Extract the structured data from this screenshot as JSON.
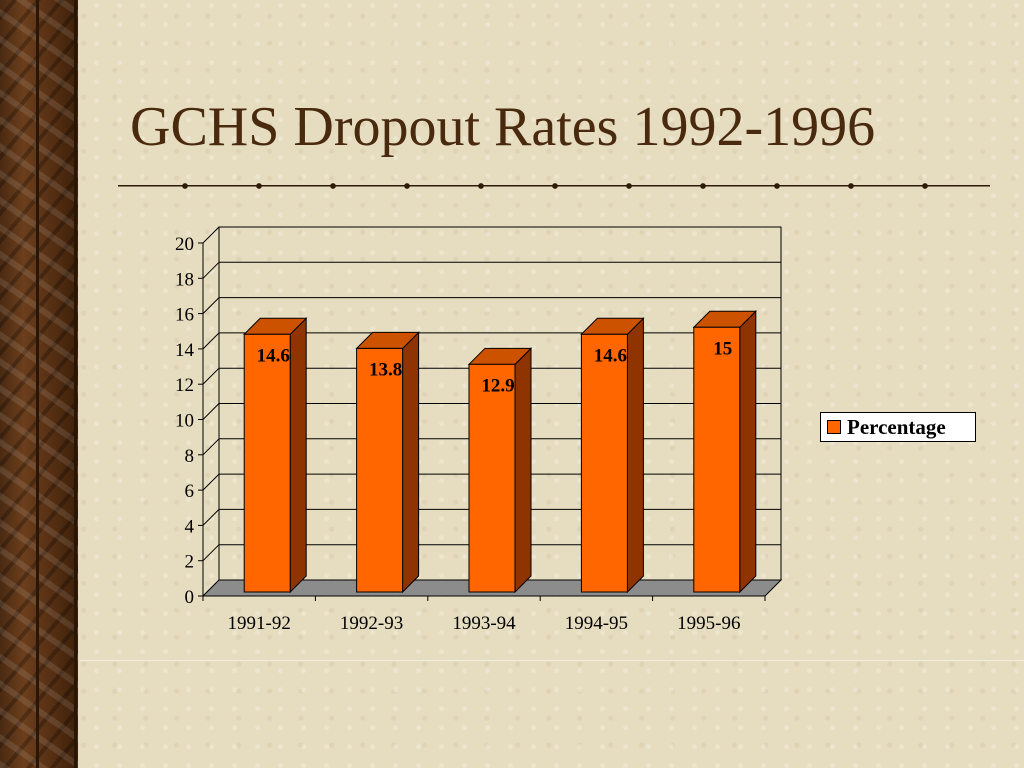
{
  "slide": {
    "title": "GCHS Dropout Rates 1992-1996"
  },
  "chart_data": {
    "type": "bar",
    "categories": [
      "1991-92",
      "1992-93",
      "1993-94",
      "1994-95",
      "1995-96"
    ],
    "series": [
      {
        "name": "Percentage",
        "values": [
          14.6,
          13.8,
          12.9,
          14.6,
          15
        ],
        "color": "#ff6600"
      }
    ],
    "ylim": [
      0,
      20
    ],
    "yticks": [
      0,
      2,
      4,
      6,
      8,
      10,
      12,
      14,
      16,
      18,
      20
    ],
    "grid": true,
    "legend": "right",
    "style": "3d",
    "data_labels": [
      "14.6",
      "13.8",
      "12.9",
      "14.6",
      "15"
    ]
  },
  "colors": {
    "bar_front": "#ff6600",
    "bar_side": "#8f3300",
    "bar_top": "#cc5200",
    "title": "#4a2a0e"
  }
}
